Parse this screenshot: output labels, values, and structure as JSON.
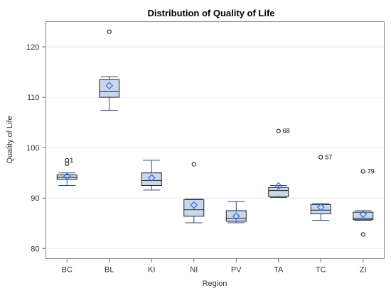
{
  "chart_data": {
    "type": "box",
    "title": "Distribution of Quality of Life",
    "xlabel": "Region",
    "ylabel": "Quality of Life",
    "ylim": [
      78,
      125
    ],
    "yticks": [
      80,
      90,
      100,
      110,
      120
    ],
    "grid": true,
    "colors": {
      "box_fill": "#c8d6ee",
      "box_stroke": "#2a4a8a",
      "whisker": "#2a4a8a",
      "mean_marker": "#2f6fd0",
      "gridline": "#e6e6e6"
    },
    "categories": [
      "BC",
      "BL",
      "KI",
      "NI",
      "PV",
      "TA",
      "TC",
      "ZI"
    ],
    "boxes": [
      {
        "category": "BC",
        "min": 92.5,
        "q1": 93.7,
        "median": 94.1,
        "q3": 94.6,
        "max": 95.0,
        "mean": 94.3,
        "outliers": [
          {
            "value": 96.8,
            "label": ""
          },
          {
            "value": 97.5,
            "label": ""
          }
        ],
        "outlier_note": "1"
      },
      {
        "category": "BL",
        "min": 107.4,
        "q1": 110.0,
        "median": 111.2,
        "q3": 113.5,
        "max": 114.1,
        "mean": 112.3,
        "outliers": [
          {
            "value": 123.0,
            "label": ""
          }
        ]
      },
      {
        "category": "KI",
        "min": 91.6,
        "q1": 92.5,
        "median": 93.5,
        "q3": 95.0,
        "max": 97.5,
        "mean": 94.0,
        "outliers": []
      },
      {
        "category": "NI",
        "min": 85.1,
        "q1": 86.4,
        "median": 87.7,
        "q3": 89.7,
        "max": 89.8,
        "mean": 88.6,
        "outliers": [
          {
            "value": 96.7,
            "label": ""
          }
        ]
      },
      {
        "category": "PV",
        "min": 85.1,
        "q1": 85.4,
        "median": 86.0,
        "q3": 87.5,
        "max": 89.3,
        "mean": 86.4,
        "outliers": []
      },
      {
        "category": "TA",
        "min": 90.1,
        "q1": 90.3,
        "median": 91.5,
        "q3": 92.1,
        "max": 92.5,
        "mean": 92.4,
        "outliers": [
          {
            "value": 103.3,
            "label": "68"
          }
        ]
      },
      {
        "category": "TC",
        "min": 85.6,
        "q1": 86.9,
        "median": 87.6,
        "q3": 88.7,
        "max": 88.9,
        "mean": 88.2,
        "outliers": [
          {
            "value": 98.1,
            "label": "57"
          }
        ]
      },
      {
        "category": "ZI",
        "min": 85.6,
        "q1": 85.7,
        "median": 86.0,
        "q3": 87.2,
        "max": 87.5,
        "mean": 86.8,
        "outliers": [
          {
            "value": 82.8,
            "label": ""
          },
          {
            "value": 95.3,
            "label": "79"
          }
        ]
      }
    ]
  }
}
